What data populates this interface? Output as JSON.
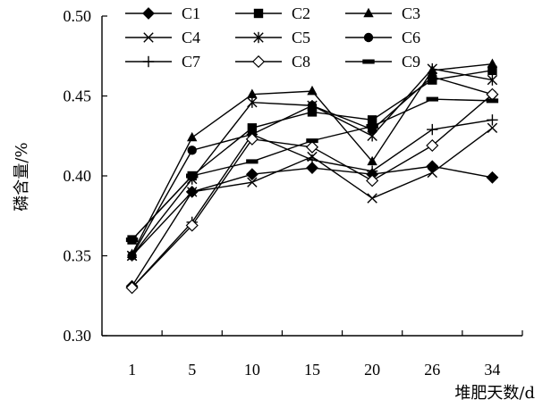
{
  "chart_data": {
    "type": "line",
    "categories": [
      "1",
      "5",
      "10",
      "15",
      "20",
      "26",
      "34"
    ],
    "xlabel": "堆肥天数/d",
    "ylabel": "磷含量/%",
    "ylim": [
      0.3,
      0.5
    ],
    "yticks": [
      "0.30",
      "0.35",
      "0.40",
      "0.45",
      "0.50"
    ],
    "grid": false,
    "legend_position": "top",
    "series": [
      {
        "name": "C1",
        "marker": "diamond-filled",
        "values": [
          0.331,
          0.39,
          0.401,
          0.405,
          0.401,
          0.406,
          0.399
        ]
      },
      {
        "name": "C2",
        "marker": "square-filled",
        "values": [
          0.36,
          0.4,
          0.43,
          0.44,
          0.435,
          0.46,
          0.466
        ]
      },
      {
        "name": "C3",
        "marker": "triangle-filled",
        "values": [
          0.351,
          0.424,
          0.451,
          0.453,
          0.409,
          0.466,
          0.47
        ]
      },
      {
        "name": "C4",
        "marker": "x",
        "values": [
          0.35,
          0.39,
          0.396,
          0.412,
          0.386,
          0.402,
          0.43
        ]
      },
      {
        "name": "C5",
        "marker": "asterisk",
        "values": [
          0.35,
          0.398,
          0.446,
          0.444,
          0.425,
          0.467,
          0.46
        ]
      },
      {
        "name": "C6",
        "marker": "circle-filled",
        "values": [
          0.35,
          0.416,
          0.426,
          0.444,
          0.429,
          0.462,
          0.451
        ]
      },
      {
        "name": "C7",
        "marker": "plus",
        "values": [
          0.33,
          0.371,
          0.426,
          0.41,
          0.403,
          0.429,
          0.435
        ]
      },
      {
        "name": "C8",
        "marker": "diamond-open",
        "values": [
          0.33,
          0.369,
          0.423,
          0.418,
          0.397,
          0.419,
          0.451
        ]
      },
      {
        "name": "C9",
        "marker": "dash",
        "values": [
          0.36,
          0.4,
          0.409,
          0.422,
          0.431,
          0.448,
          0.447
        ]
      }
    ]
  }
}
